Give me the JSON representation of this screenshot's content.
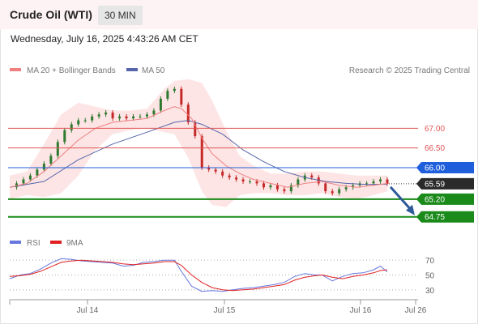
{
  "header": {
    "title": "Crude Oil (WTI)",
    "timeframe": "30 MIN",
    "datetime": "Wednesday, July 16, 2025 4:43:26 AM CET"
  },
  "colors": {
    "header_bg": "#fdf2f4",
    "ma20": "#f08080",
    "bollinger_fill": "#fde0e0",
    "ma50": "#5566aa",
    "resistance": "#e05555",
    "pivot": "#1f5fdc",
    "support": "#1a8a1a",
    "price_tag": "#2a2a2a",
    "arrow": "#2f5a9a",
    "rsi": "#6677dd",
    "rsi_ma": "#e02020",
    "candle": "#2f7a2f",
    "candle_down": "#c62828"
  },
  "chart_data": [
    {
      "type": "line",
      "title": "Crude Oil (WTI)",
      "legend": [
        {
          "label": "MA 20 + Bollinger Bands",
          "color": "#f08080"
        },
        {
          "label": "MA 50",
          "color": "#5566aa"
        }
      ],
      "copyright": "Research © 2025 Trading Central",
      "x_ticks": [
        "Jul 14",
        "Jul 15",
        "Jul 16",
        "Jul 26"
      ],
      "ylim": [
        64.6,
        68.2
      ],
      "levels": [
        {
          "label": "67.00",
          "value": 67.0,
          "role": "resistance"
        },
        {
          "label": "66.50",
          "value": 66.5,
          "role": "resistance"
        },
        {
          "label": "66.00",
          "value": 66.0,
          "role": "pivot"
        },
        {
          "label": "65.59",
          "value": 65.59,
          "role": "last-price"
        },
        {
          "label": "65.20",
          "value": 65.2,
          "role": "support"
        },
        {
          "label": "64.75",
          "value": 64.75,
          "role": "support"
        }
      ],
      "arrow": {
        "from": 65.59,
        "to": 64.75,
        "direction": "down"
      },
      "price_series": [
        [
          0,
          65.5
        ],
        [
          4,
          65.6
        ],
        [
          8,
          65.7
        ],
        [
          12,
          65.8
        ],
        [
          16,
          65.95
        ],
        [
          20,
          66.1
        ],
        [
          24,
          66.3
        ],
        [
          28,
          66.65
        ],
        [
          32,
          66.95
        ],
        [
          36,
          67.1
        ],
        [
          40,
          67.2
        ],
        [
          44,
          67.2
        ],
        [
          48,
          67.3
        ],
        [
          52,
          67.35
        ],
        [
          56,
          67.4
        ],
        [
          60,
          67.25
        ],
        [
          64,
          67.3
        ],
        [
          68,
          67.25
        ],
        [
          72,
          67.3
        ],
        [
          76,
          67.3
        ],
        [
          80,
          67.35
        ],
        [
          84,
          67.45
        ],
        [
          88,
          67.75
        ],
        [
          92,
          67.95
        ],
        [
          96,
          68.0
        ],
        [
          100,
          67.6
        ],
        [
          104,
          67.15
        ],
        [
          108,
          66.8
        ],
        [
          112,
          66.0
        ],
        [
          116,
          65.95
        ],
        [
          120,
          65.9
        ],
        [
          124,
          65.8
        ],
        [
          128,
          65.75
        ],
        [
          132,
          65.7
        ],
        [
          136,
          65.65
        ],
        [
          140,
          65.65
        ],
        [
          144,
          65.6
        ],
        [
          148,
          65.5
        ],
        [
          152,
          65.55
        ],
        [
          156,
          65.45
        ],
        [
          160,
          65.4
        ],
        [
          164,
          65.55
        ],
        [
          168,
          65.7
        ],
        [
          172,
          65.8
        ],
        [
          176,
          65.75
        ],
        [
          180,
          65.6
        ],
        [
          184,
          65.4
        ],
        [
          188,
          65.35
        ],
        [
          192,
          65.45
        ],
        [
          196,
          65.5
        ],
        [
          200,
          65.55
        ],
        [
          204,
          65.6
        ],
        [
          208,
          65.6
        ],
        [
          212,
          65.65
        ],
        [
          216,
          65.7
        ],
        [
          220,
          65.59
        ]
      ],
      "ma20": [
        [
          0,
          65.5
        ],
        [
          10,
          65.6
        ],
        [
          20,
          65.9
        ],
        [
          30,
          66.3
        ],
        [
          40,
          66.7
        ],
        [
          50,
          67.0
        ],
        [
          60,
          67.15
        ],
        [
          70,
          67.2
        ],
        [
          80,
          67.25
        ],
        [
          90,
          67.45
        ],
        [
          96,
          67.55
        ],
        [
          100,
          67.5
        ],
        [
          106,
          67.25
        ],
        [
          112,
          66.75
        ],
        [
          118,
          66.35
        ],
        [
          126,
          66.05
        ],
        [
          134,
          65.85
        ],
        [
          142,
          65.7
        ],
        [
          152,
          65.6
        ],
        [
          162,
          65.5
        ],
        [
          172,
          65.6
        ],
        [
          182,
          65.65
        ],
        [
          192,
          65.55
        ],
        [
          202,
          65.5
        ],
        [
          212,
          65.55
        ],
        [
          220,
          65.6
        ]
      ],
      "bollinger_upper": [
        [
          0,
          65.8
        ],
        [
          10,
          65.9
        ],
        [
          20,
          66.6
        ],
        [
          30,
          67.35
        ],
        [
          40,
          67.65
        ],
        [
          50,
          67.55
        ],
        [
          60,
          67.45
        ],
        [
          70,
          67.45
        ],
        [
          80,
          67.5
        ],
        [
          90,
          68.0
        ],
        [
          96,
          68.2
        ],
        [
          104,
          68.25
        ],
        [
          112,
          68.15
        ],
        [
          118,
          67.7
        ],
        [
          126,
          66.95
        ],
        [
          134,
          66.3
        ],
        [
          142,
          66.05
        ],
        [
          152,
          65.85
        ],
        [
          162,
          65.85
        ],
        [
          172,
          65.9
        ],
        [
          182,
          65.9
        ],
        [
          192,
          65.85
        ],
        [
          202,
          65.8
        ],
        [
          212,
          65.8
        ],
        [
          220,
          65.8
        ]
      ],
      "bollinger_lower": [
        [
          0,
          65.2
        ],
        [
          10,
          65.3
        ],
        [
          20,
          65.25
        ],
        [
          30,
          65.35
        ],
        [
          40,
          65.8
        ],
        [
          50,
          66.45
        ],
        [
          60,
          66.85
        ],
        [
          70,
          66.95
        ],
        [
          80,
          67.0
        ],
        [
          90,
          66.9
        ],
        [
          96,
          66.85
        ],
        [
          104,
          66.25
        ],
        [
          112,
          65.4
        ],
        [
          118,
          65.05
        ],
        [
          126,
          65.0
        ],
        [
          134,
          65.3
        ],
        [
          142,
          65.35
        ],
        [
          152,
          65.35
        ],
        [
          162,
          65.3
        ],
        [
          172,
          65.3
        ],
        [
          182,
          65.35
        ],
        [
          192,
          65.25
        ],
        [
          202,
          65.2
        ],
        [
          212,
          65.3
        ],
        [
          220,
          65.4
        ]
      ],
      "ma50": [
        [
          0,
          65.5
        ],
        [
          20,
          65.65
        ],
        [
          40,
          66.2
        ],
        [
          60,
          66.6
        ],
        [
          80,
          66.9
        ],
        [
          96,
          67.15
        ],
        [
          104,
          67.2
        ],
        [
          112,
          67.1
        ],
        [
          124,
          66.85
        ],
        [
          136,
          66.45
        ],
        [
          148,
          66.15
        ],
        [
          160,
          65.9
        ],
        [
          172,
          65.75
        ],
        [
          184,
          65.65
        ],
        [
          196,
          65.6
        ],
        [
          208,
          65.57
        ],
        [
          220,
          65.58
        ]
      ]
    },
    {
      "type": "line",
      "title": "",
      "legend": [
        {
          "label": "RSI",
          "color": "#6677dd"
        },
        {
          "label": "9MA",
          "color": "#e02020"
        }
      ],
      "y_ticks": [
        70,
        50,
        30
      ],
      "ylim": [
        20,
        80
      ],
      "x_ticks": [
        "Jul 14",
        "Jul 15",
        "Jul 16",
        "Jul 26"
      ],
      "series": [
        {
          "name": "RSI",
          "values": [
            [
              0,
              45
            ],
            [
              6,
              50
            ],
            [
              12,
              52
            ],
            [
              18,
              58
            ],
            [
              24,
              66
            ],
            [
              30,
              72
            ],
            [
              36,
              71
            ],
            [
              42,
              69
            ],
            [
              48,
              68
            ],
            [
              54,
              67
            ],
            [
              60,
              66
            ],
            [
              66,
              62
            ],
            [
              72,
              63
            ],
            [
              78,
              67
            ],
            [
              84,
              68
            ],
            [
              90,
              70
            ],
            [
              96,
              70
            ],
            [
              100,
              55
            ],
            [
              106,
              35
            ],
            [
              112,
              28
            ],
            [
              118,
              29
            ],
            [
              124,
              28
            ],
            [
              130,
              30
            ],
            [
              136,
              32
            ],
            [
              142,
              33
            ],
            [
              148,
              35
            ],
            [
              154,
              37
            ],
            [
              160,
              40
            ],
            [
              166,
              48
            ],
            [
              172,
              52
            ],
            [
              178,
              50
            ],
            [
              182,
              50
            ],
            [
              188,
              42
            ],
            [
              194,
              48
            ],
            [
              200,
              52
            ],
            [
              206,
              53
            ],
            [
              212,
              57
            ],
            [
              216,
              62
            ],
            [
              220,
              54
            ]
          ]
        },
        {
          "name": "9MA",
          "values": [
            [
              0,
              48
            ],
            [
              6,
              49
            ],
            [
              12,
              51
            ],
            [
              18,
              55
            ],
            [
              24,
              61
            ],
            [
              30,
              67
            ],
            [
              36,
              69
            ],
            [
              42,
              70
            ],
            [
              48,
              69
            ],
            [
              54,
              68
            ],
            [
              60,
              67
            ],
            [
              66,
              65
            ],
            [
              72,
              64
            ],
            [
              78,
              65
            ],
            [
              84,
              66
            ],
            [
              90,
              68
            ],
            [
              96,
              68
            ],
            [
              100,
              63
            ],
            [
              106,
              50
            ],
            [
              112,
              40
            ],
            [
              118,
              33
            ],
            [
              124,
              30
            ],
            [
              130,
              29
            ],
            [
              136,
              30
            ],
            [
              142,
              31
            ],
            [
              148,
              33
            ],
            [
              154,
              35
            ],
            [
              160,
              37
            ],
            [
              166,
              43
            ],
            [
              172,
              47
            ],
            [
              178,
              49
            ],
            [
              182,
              50
            ],
            [
              188,
              47
            ],
            [
              194,
              45
            ],
            [
              200,
              48
            ],
            [
              206,
              50
            ],
            [
              212,
              53
            ],
            [
              216,
              56
            ],
            [
              220,
              57
            ]
          ]
        }
      ]
    }
  ]
}
